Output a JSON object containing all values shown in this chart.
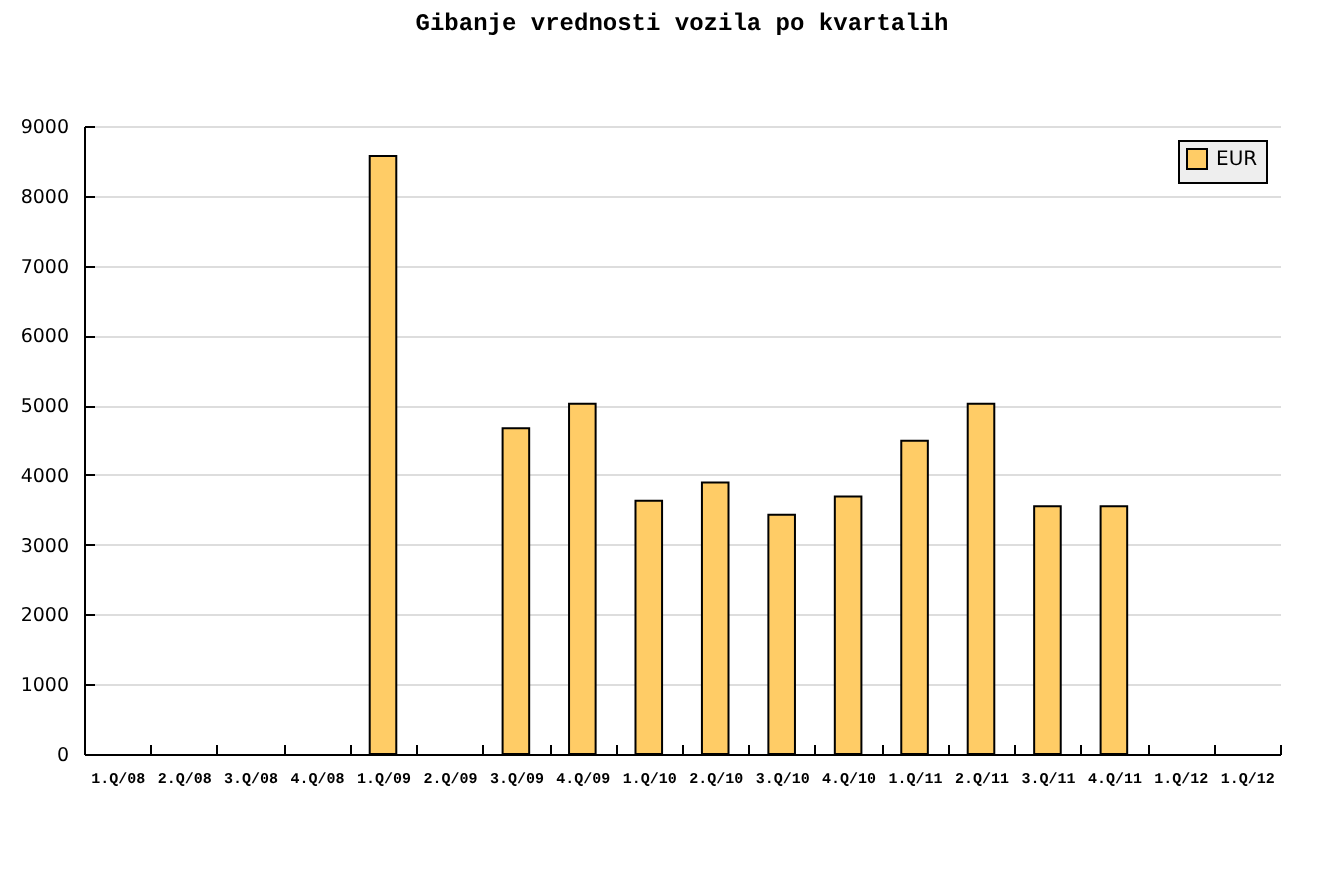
{
  "chart_data": {
    "type": "bar",
    "title": "Gibanje vrednosti vozila po kvartalih",
    "categories": [
      "1.Q/08",
      "2.Q/08",
      "3.Q/08",
      "4.Q/08",
      "1.Q/09",
      "2.Q/09",
      "3.Q/09",
      "4.Q/09",
      "1.Q/10",
      "2.Q/10",
      "3.Q/10",
      "4.Q/10",
      "1.Q/11",
      "2.Q/11",
      "3.Q/11",
      "4.Q/11",
      "1.Q/12",
      "1.Q/12"
    ],
    "series": [
      {
        "name": "EUR",
        "color": "#ffcc66",
        "values": [
          null,
          null,
          null,
          null,
          8570,
          null,
          4670,
          5020,
          3630,
          3890,
          3430,
          3690,
          4490,
          5020,
          3550,
          3550,
          null,
          null
        ]
      }
    ],
    "ylim": [
      0,
      9000
    ],
    "yticks": [
      0,
      1000,
      2000,
      3000,
      4000,
      5000,
      6000,
      7000,
      8000,
      9000
    ],
    "grid": "y",
    "legend": "top right"
  }
}
